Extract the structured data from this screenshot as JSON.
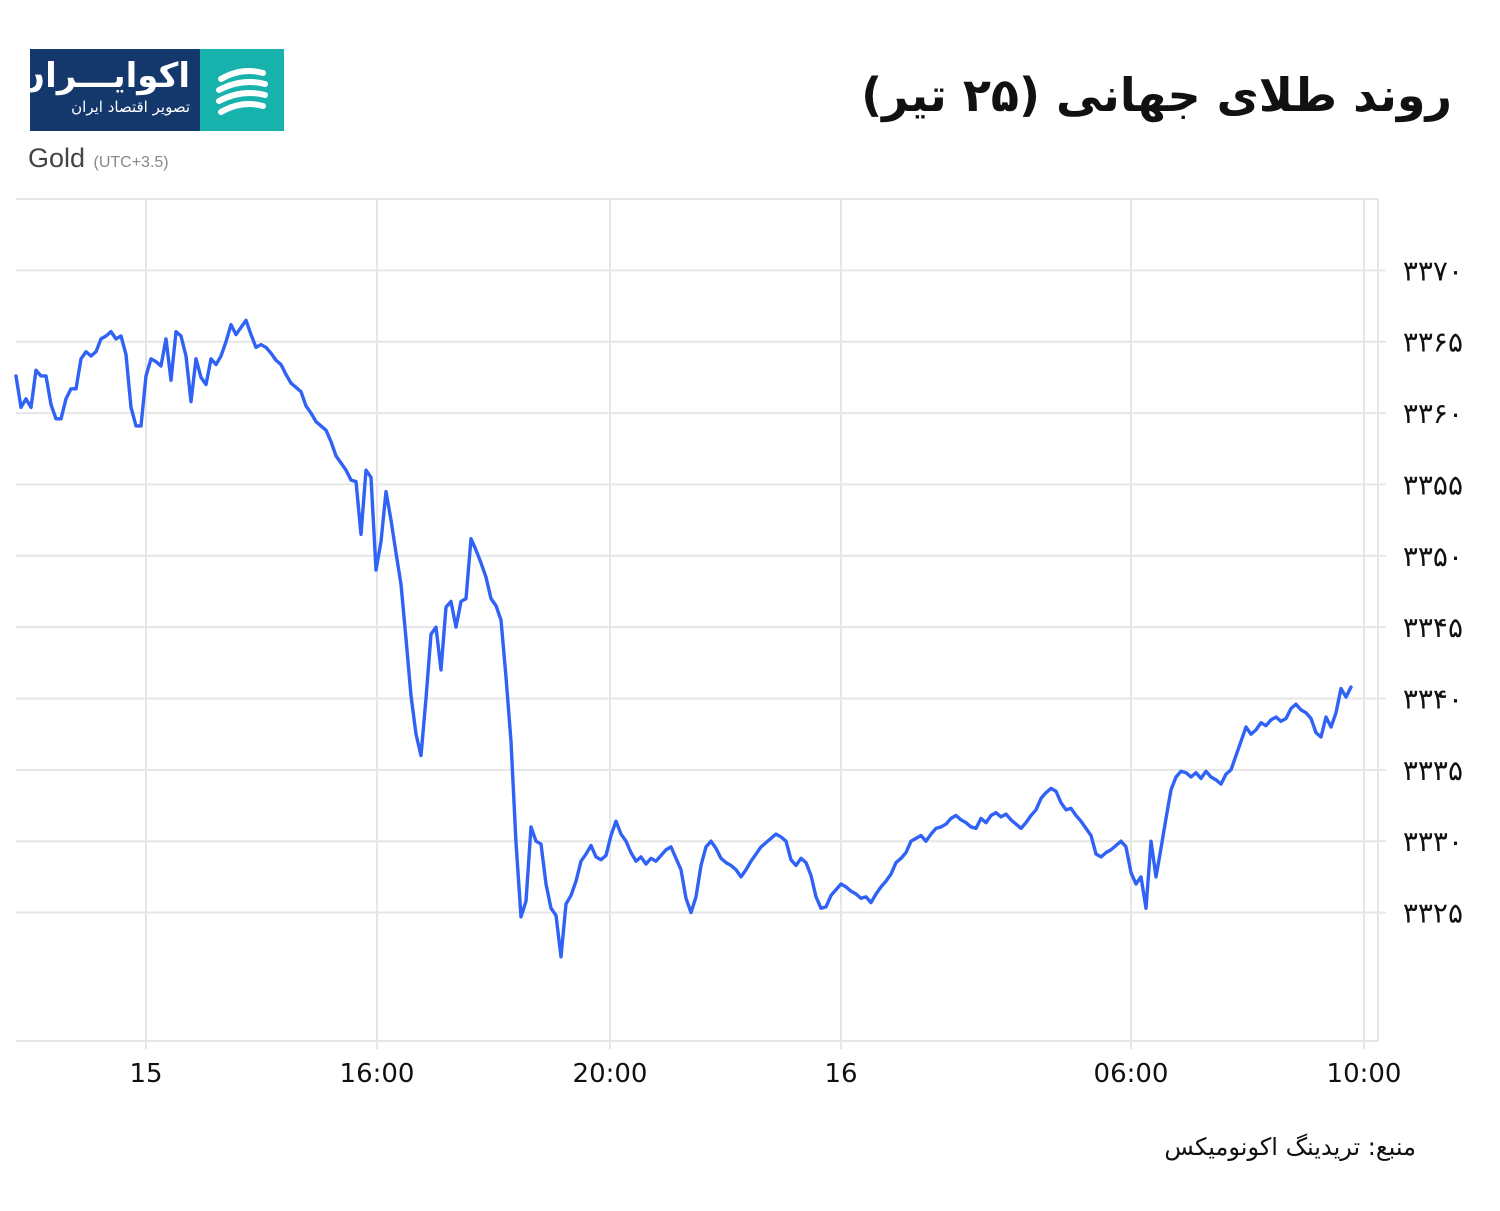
{
  "header": {
    "title": "روند طلای جهانی (۲۵ تیر)",
    "logo_name": "اکوایـــران",
    "logo_tagline": "تصویر اقتصاد ایران",
    "subtitle": "Gold",
    "timezone": "(UTC+3.5)",
    "source": "منبع: تریدینگ اکونومیکس"
  },
  "colors": {
    "line": "#2f62f5",
    "grid": "#e6e6e6",
    "logo_bg": "#14386b",
    "logo_accent": "#18b2ad"
  },
  "chart_data": {
    "type": "line",
    "title": "روند طلای جهانی (۲۵ تیر)",
    "ylim": [
      3316,
      3375
    ],
    "y_ticks": [
      3325,
      3330,
      3335,
      3340,
      3345,
      3350,
      3355,
      3360,
      3365,
      3370
    ],
    "y_tick_labels": [
      "۳۳۲۵",
      "۳۳۳۰",
      "۳۳۳۵",
      "۳۳۴۰",
      "۳۳۴۵",
      "۳۳۵۰",
      "۳۳۵۵",
      "۳۳۶۰",
      "۳۳۶۵",
      "۳۳۷۰"
    ],
    "x_tick_labels": [
      "15",
      "16:00",
      "20:00",
      "16",
      "06:00",
      "10:00"
    ],
    "grid": true,
    "series": [
      {
        "values": [
          3362.6,
          3360.4,
          3361.0,
          3360.4,
          3363.0,
          3362.6,
          3362.6,
          3360.6,
          3359.6,
          3359.6,
          3361.0,
          3361.7,
          3361.7,
          3363.8,
          3364.3,
          3364.0,
          3364.3,
          3365.2,
          3365.4,
          3365.7,
          3365.2,
          3365.4,
          3364.1,
          3360.4,
          3359.1,
          3359.1,
          3362.6,
          3363.8,
          3363.6,
          3363.3,
          3365.2,
          3362.3,
          3365.7,
          3365.4,
          3364.0,
          3360.8,
          3363.8,
          3362.5,
          3362.0,
          3363.8,
          3363.4,
          3364.0,
          3365.0,
          3366.2,
          3365.5,
          3366.0,
          3366.5,
          3365.5,
          3364.6,
          3364.8,
          3364.6,
          3364.2,
          3363.7,
          3363.4,
          3362.7,
          3362.1,
          3361.8,
          3361.5,
          3360.5,
          3360.0,
          3359.4,
          3359.1,
          3358.8,
          3358.0,
          3357.0,
          3356.5,
          3356.0,
          3355.3,
          3355.2,
          3351.5,
          3356.0,
          3355.5,
          3349.0,
          3351.0,
          3354.5,
          3352.5,
          3350.2,
          3348.0,
          3344.2,
          3340.2,
          3337.5,
          3336.0,
          3340.0,
          3344.5,
          3345.0,
          3342.0,
          3346.4,
          3346.8,
          3345.0,
          3346.8,
          3347.0,
          3351.2,
          3350.4,
          3349.5,
          3348.5,
          3347.0,
          3346.5,
          3345.5,
          3341.5,
          3337.0,
          3329.9,
          3324.7,
          3325.8,
          3331.0,
          3330.0,
          3329.8,
          3327.0,
          3325.3,
          3324.8,
          3321.9,
          3325.6,
          3326.2,
          3327.2,
          3328.6,
          3329.1,
          3329.7,
          3328.9,
          3328.7,
          3329.0,
          3330.4,
          3331.4,
          3330.5,
          3330.0,
          3329.2,
          3328.6,
          3328.9,
          3328.4,
          3328.8,
          3328.6,
          3329.0,
          3329.4,
          3329.6,
          3328.8,
          3328.0,
          3326.0,
          3325.0,
          3326.1,
          3328.3,
          3329.6,
          3330.0,
          3329.5,
          3328.8,
          3328.5,
          3328.3,
          3328.0,
          3327.5,
          3328.0,
          3328.6,
          3329.1,
          3329.6,
          3329.9,
          3330.2,
          3330.5,
          3330.3,
          3330.0,
          3328.7,
          3328.3,
          3328.8,
          3328.5,
          3327.6,
          3326.1,
          3325.3,
          3325.4,
          3326.2,
          3326.6,
          3327.0,
          3326.8,
          3326.5,
          3326.3,
          3326.0,
          3326.1,
          3325.7,
          3326.3,
          3326.8,
          3327.2,
          3327.7,
          3328.5,
          3328.8,
          3329.2,
          3330.0,
          3330.2,
          3330.4,
          3330.0,
          3330.5,
          3330.9,
          3331.0,
          3331.2,
          3331.6,
          3331.8,
          3331.5,
          3331.3,
          3331.0,
          3330.9,
          3331.6,
          3331.3,
          3331.8,
          3332.0,
          3331.7,
          3331.9,
          3331.5,
          3331.2,
          3330.9,
          3331.3,
          3331.8,
          3332.2,
          3333.0,
          3333.4,
          3333.7,
          3333.5,
          3332.7,
          3332.2,
          3332.3,
          3331.8,
          3331.4,
          3330.9,
          3330.4,
          3329.1,
          3328.9,
          3329.2,
          3329.4,
          3329.7,
          3330.0,
          3329.6,
          3327.8,
          3327.0,
          3327.5,
          3325.3,
          3330.0,
          3327.5,
          3329.5,
          3331.6,
          3333.6,
          3334.5,
          3334.9,
          3334.8,
          3334.5,
          3334.8,
          3334.4,
          3334.9,
          3334.5,
          3334.3,
          3334.0,
          3334.7,
          3335.0,
          3336.0,
          3337.0,
          3338.0,
          3337.5,
          3337.8,
          3338.3,
          3338.1,
          3338.5,
          3338.7,
          3338.4,
          3338.6,
          3339.3,
          3339.6,
          3339.2,
          3339.0,
          3338.6,
          3337.6,
          3337.3,
          3338.7,
          3338.0,
          3339.0,
          3340.7,
          3340.1,
          3340.8
        ]
      }
    ]
  }
}
